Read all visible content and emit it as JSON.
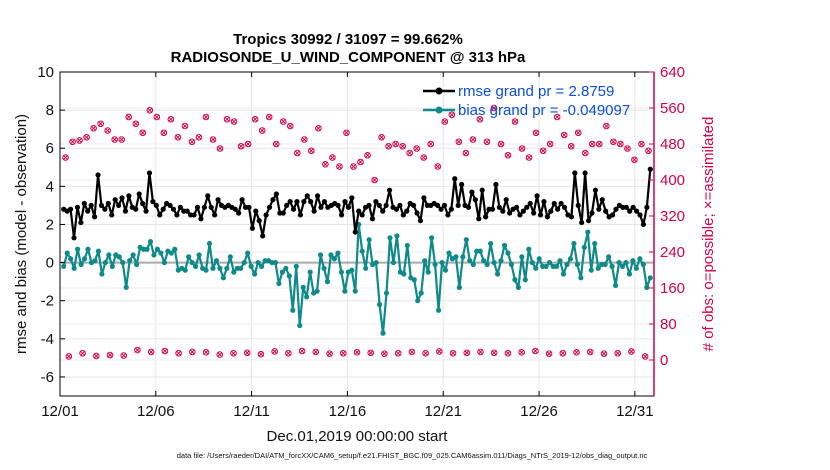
{
  "chart_data": {
    "type": "line",
    "title": "Tropics 30992 / 31097 = 99.662%",
    "subtitle": "RADIOSONDE_U_WIND_COMPONENT @ 313 hPa",
    "xlabel": "Dec.01,2019 00:00:00 start",
    "ylabel_left": "rmse and bias (model - observation)",
    "ylabel_right": "# of obs: o=possible; ×=assimilated",
    "xlim": [
      0,
      31
    ],
    "ylim_left": [
      -7,
      10
    ],
    "ylim_right": [
      -80,
      640
    ],
    "x_ticks": [
      0,
      5,
      10,
      15,
      20,
      25,
      30
    ],
    "x_tick_labels": [
      "12/01",
      "12/06",
      "12/11",
      "12/16",
      "12/21",
      "12/26",
      "12/31"
    ],
    "y_ticks_left": [
      -6,
      -4,
      -2,
      0,
      2,
      4,
      6,
      8,
      10
    ],
    "y_ticks_right": [
      0,
      80,
      160,
      240,
      320,
      400,
      480,
      560,
      640
    ],
    "grid": true,
    "legend_position": "top-right",
    "colors": {
      "rmse": "#000000",
      "bias": "#0e8a8a",
      "obs": "#d6004c",
      "zero_line": "#aaaaaa",
      "right_axis": "#d6004c"
    },
    "series": [
      {
        "name": "rmse grand pr = 2.8759",
        "axis": "left",
        "values": [
          2.8,
          2.7,
          2.8,
          1.3,
          2.9,
          2.1,
          3.1,
          2.7,
          3.0,
          2.4,
          4.6,
          3.0,
          2.8,
          3.1,
          2.5,
          3.3,
          3.0,
          3.4,
          2.7,
          3.5,
          2.9,
          2.8,
          3.6,
          3.1,
          2.7,
          4.7,
          3.2,
          3.0,
          2.5,
          2.8,
          3.1,
          3.0,
          2.8,
          2.5,
          2.9,
          2.7,
          2.7,
          2.5,
          2.5,
          2.9,
          2.3,
          2.9,
          3.5,
          2.9,
          2.5,
          3.3,
          3.0,
          2.9,
          3.0,
          2.9,
          2.8,
          2.6,
          3.3,
          2.9,
          2.9,
          1.8,
          2.7,
          2.2,
          1.4,
          2.5,
          2.9,
          3.3,
          3.6,
          2.6,
          2.6,
          3.0,
          3.2,
          2.8,
          3.2,
          2.5,
          3.2,
          3.5,
          3.2,
          2.7,
          3.5,
          2.9,
          3.2,
          2.9,
          3.0,
          3.1,
          3.0,
          2.5,
          3.2,
          2.9,
          3.4,
          1.6,
          2.7,
          2.5,
          2.9,
          3.0,
          2.3,
          3.2,
          3.0,
          2.7,
          3.0,
          3.8,
          2.9,
          2.8,
          3.0,
          2.5,
          2.7,
          3.1,
          3.0,
          2.6,
          2.2,
          3.4,
          3.0,
          3.0,
          3.1,
          3.0,
          2.8,
          3.0,
          2.5,
          2.8,
          4.4,
          3.0,
          4.1,
          3.0,
          2.9,
          3.7,
          3.3,
          2.3,
          3.8,
          2.4,
          2.8,
          2.8,
          4.1,
          2.9,
          2.7,
          3.3,
          2.6,
          2.8,
          2.9,
          2.5,
          2.7,
          2.9,
          3.1,
          2.6,
          3.5,
          2.5,
          3.2,
          2.4,
          2.7,
          3.1,
          2.8,
          3.1,
          2.9,
          2.5,
          2.4,
          4.7,
          3.0,
          2.1,
          4.7,
          2.2,
          2.6,
          3.8,
          2.8,
          3.3,
          2.7,
          2.4,
          2.5,
          2.8,
          3.0,
          2.9,
          2.9,
          2.7,
          2.9,
          2.7,
          2.5,
          2.0,
          2.9,
          4.9
        ]
      },
      {
        "name": "bias grand pr = -0.049097",
        "axis": "left",
        "values": [
          -0.2,
          0.5,
          0.2,
          -0.3,
          0.7,
          -0.1,
          0.2,
          0.7,
          0.0,
          0.1,
          0.6,
          -0.6,
          0.0,
          0.4,
          -0.2,
          0.4,
          0.3,
          0.0,
          -1.3,
          0.1,
          0.4,
          -0.1,
          0.8,
          0.7,
          0.7,
          1.1,
          0.4,
          0.7,
          0.5,
          0.0,
          0.6,
          0.5,
          0.7,
          -0.4,
          -0.3,
          -0.4,
          0.3,
          0.0,
          -0.2,
          0.4,
          -0.3,
          -0.4,
          1.0,
          -0.3,
          0.1,
          -0.3,
          -0.8,
          -0.3,
          0.3,
          -0.5,
          -0.3,
          -0.3,
          0.0,
          0.5,
          -0.2,
          -0.6,
          0.0,
          -0.2,
          0.1,
          0.1,
          0.0,
          0.0,
          -1.1,
          -0.5,
          -0.3,
          -0.7,
          -2.5,
          -0.2,
          -3.3,
          -1.3,
          -1.8,
          -0.5,
          -1.6,
          -1.5,
          0.4,
          -0.3,
          -1.0,
          0.4,
          0.2,
          0.5,
          -0.5,
          -1.5,
          -0.5,
          -0.4,
          -1.5,
          2.0,
          0.6,
          -0.3,
          1.2,
          -0.1,
          0.0,
          -2.2,
          -3.7,
          -1.6,
          1.3,
          0.0,
          1.4,
          -0.5,
          -0.6,
          0.9,
          -0.8,
          -0.9,
          -2.0,
          -1.6,
          0.1,
          -0.5,
          1.3,
          -0.1,
          -2.5,
          0.0,
          -0.4,
          0.5,
          0.2,
          0.3,
          -1.3,
          0.3,
          1.2,
          0.1,
          -0.1,
          0.6,
          0.6,
          0.1,
          -0.1,
          1.0,
          0.0,
          -0.6,
          0.1,
          0.9,
          0.5,
          -0.1,
          -0.9,
          -1.3,
          0.3,
          -0.9,
          0.7,
          0.0,
          -0.3,
          0.2,
          -0.2,
          -0.2,
          0.0,
          -0.2,
          -0.2,
          0.1,
          -0.6,
          -0.1,
          0.2,
          1.0,
          -0.1,
          -0.8,
          0.8,
          1.6,
          -0.4,
          1.0,
          -0.3,
          -0.1,
          -0.1,
          0.3,
          -0.2,
          -1.2,
          0.0,
          -0.2,
          0.0,
          -0.6,
          0.1,
          -0.3,
          0.2,
          -0.1,
          -1.3,
          -0.8
        ]
      }
    ],
    "obs_possible": [
      450,
      480,
      485,
      490,
      488,
      475,
      495,
      470,
      515,
      520,
      525,
      530,
      510,
      485,
      490,
      535,
      490,
      545,
      540,
      515,
      525,
      530,
      505,
      465,
      555,
      550,
      540,
      575,
      505,
      525,
      535,
      510,
      495,
      480,
      520,
      505,
      485,
      480,
      495,
      475,
      540,
      530,
      490,
      465,
      470,
      540,
      535,
      470,
      530,
      500,
      475,
      555,
      480,
      460,
      535,
      465,
      510,
      480,
      540,
      510,
      480,
      480,
      530,
      500,
      520,
      480,
      460,
      470,
      490,
      460,
      465,
      525,
      515,
      455,
      435,
      480,
      450,
      440,
      430,
      445,
      505,
      495,
      430,
      465,
      440,
      425,
      455,
      455,
      400,
      440,
      495,
      460,
      475,
      470,
      480,
      500,
      475,
      465,
      460,
      475,
      470,
      460,
      450,
      480,
      480,
      490,
      430,
      505,
      530,
      545,
      545,
      495,
      485,
      545,
      460,
      490,
      490,
      485,
      535,
      550,
      485,
      565,
      560,
      475,
      480,
      505,
      455,
      460,
      530,
      525,
      470,
      510,
      450,
      470,
      505,
      510,
      465,
      485,
      480,
      475,
      540,
      545,
      500,
      475,
      475,
      520,
      505,
      470,
      460,
      465,
      480,
      480,
      480,
      470,
      520,
      515,
      485,
      470,
      480,
      470,
      470,
      480,
      445,
      480,
      480,
      500,
      465,
      525
    ],
    "obs_assimilated": [
      450,
      480,
      485,
      490,
      488,
      475,
      495,
      470,
      515,
      520,
      525,
      530,
      510,
      485,
      490,
      535,
      490,
      545,
      540,
      515,
      525,
      530,
      505,
      465,
      555,
      550,
      540,
      575,
      505,
      525,
      535,
      510,
      495,
      480,
      520,
      505,
      485,
      480,
      495,
      475,
      540,
      530,
      490,
      465,
      470,
      540,
      535,
      470,
      530,
      500,
      475,
      555,
      480,
      460,
      535,
      465,
      510,
      480,
      540,
      510,
      480,
      480,
      530,
      500,
      520,
      480,
      460,
      470,
      490,
      460,
      465,
      525,
      515,
      455,
      435,
      480,
      450,
      440,
      430,
      445,
      505,
      495,
      430,
      465,
      440,
      425,
      455,
      455,
      400,
      440,
      495,
      460,
      475,
      470,
      480,
      500,
      475,
      465,
      460,
      475,
      470,
      460,
      450,
      480,
      480,
      490,
      430,
      505,
      530,
      545,
      545,
      495,
      485,
      545,
      460,
      490,
      490,
      485,
      535,
      550,
      485,
      565,
      560,
      475,
      480,
      505,
      455,
      460,
      530,
      525,
      470,
      510,
      450,
      470,
      505,
      510,
      465,
      485,
      480,
      475,
      540,
      545,
      500,
      475,
      475,
      520,
      505,
      470,
      460,
      465,
      480,
      480,
      480,
      470,
      520,
      515,
      485,
      470,
      480,
      470,
      470,
      480,
      445,
      480,
      480,
      500,
      465,
      525
    ],
    "obs_bottom_possible": [
      8,
      14,
      18,
      10,
      15,
      12,
      13,
      18,
      9,
      14,
      16,
      20,
      11,
      13,
      17,
      14,
      10,
      19,
      16,
      12,
      22,
      17,
      15,
      13,
      18,
      16,
      12,
      14,
      20,
      17,
      13,
      11,
      15,
      19,
      14,
      12,
      18,
      16,
      13,
      10,
      17,
      15,
      20,
      14,
      12,
      16,
      19,
      13,
      15,
      11,
      18,
      14,
      16,
      12,
      20,
      15,
      13,
      17,
      11,
      14,
      19,
      16,
      12,
      18,
      15,
      13,
      17,
      14,
      20,
      12,
      16,
      11,
      18,
      15,
      13,
      19,
      14,
      17,
      12,
      16,
      15,
      13,
      18,
      11,
      17,
      14,
      20,
      12,
      16,
      15,
      13,
      18,
      14,
      19,
      12,
      17,
      15,
      13,
      16,
      11,
      18,
      14,
      20,
      12,
      15,
      17,
      13,
      16,
      19,
      14,
      12,
      18,
      15,
      13,
      17,
      11,
      16,
      20,
      14,
      12,
      18,
      15,
      13,
      17,
      16,
      12,
      19,
      14,
      15,
      13,
      18,
      11,
      17,
      14,
      16,
      12,
      20,
      15,
      13,
      18,
      14,
      17,
      12,
      16,
      15,
      13,
      19,
      11,
      17,
      14,
      16,
      12,
      18,
      15,
      13,
      20,
      14,
      17,
      12,
      16,
      15,
      13,
      18,
      14,
      19,
      12,
      17,
      15,
      8,
      5,
      3,
      -5
    ]
  },
  "footer": "data file: /Users/raeder/DAI/ATM_forcXX/CAM6_setup/f.e21.FHIST_BGC.f09_025.CAM6assim.011/Diags_NTrS_2019-12/obs_diag_output.nc"
}
